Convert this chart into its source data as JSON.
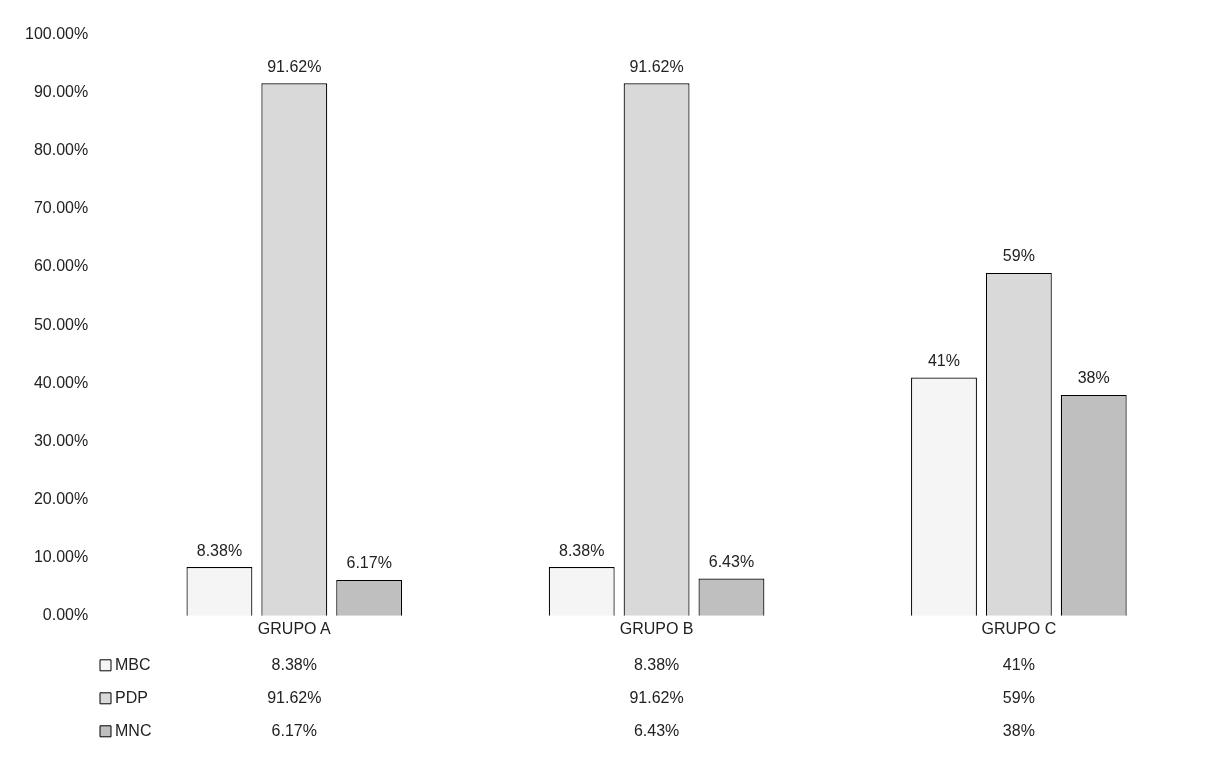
{
  "chart_data": {
    "type": "bar",
    "categories": [
      "GRUPO A",
      "GRUPO B",
      "GRUPO C"
    ],
    "series": [
      {
        "name": "MBC",
        "color": "#f5f5f5",
        "values": [
          8.38,
          8.38,
          41
        ],
        "value_labels": [
          "8.38%",
          "8.38%",
          "41%"
        ]
      },
      {
        "name": "PDP",
        "color": "#d9d9d9",
        "values": [
          91.62,
          91.62,
          59
        ],
        "value_labels": [
          "91.62%",
          "91.62%",
          "59%"
        ]
      },
      {
        "name": "MNC",
        "color": "#bfbfbf",
        "values": [
          6.17,
          6.43,
          38
        ],
        "value_labels": [
          "6.17%",
          "6.43%",
          "38%"
        ]
      }
    ],
    "ylim": [
      0,
      100
    ],
    "yticks": [
      {
        "value": 0,
        "label": "0.00%"
      },
      {
        "value": 10,
        "label": "10.00%"
      },
      {
        "value": 20,
        "label": "20.00%"
      },
      {
        "value": 30,
        "label": "30.00%"
      },
      {
        "value": 40,
        "label": "40.00%"
      },
      {
        "value": 50,
        "label": "50.00%"
      },
      {
        "value": 60,
        "label": "60.00%"
      },
      {
        "value": 70,
        "label": "70.00%"
      },
      {
        "value": 80,
        "label": "80.00%"
      },
      {
        "value": 90,
        "label": "90.00%"
      },
      {
        "value": 100,
        "label": "100.00%"
      }
    ],
    "legend": "bottom",
    "grid": false
  }
}
